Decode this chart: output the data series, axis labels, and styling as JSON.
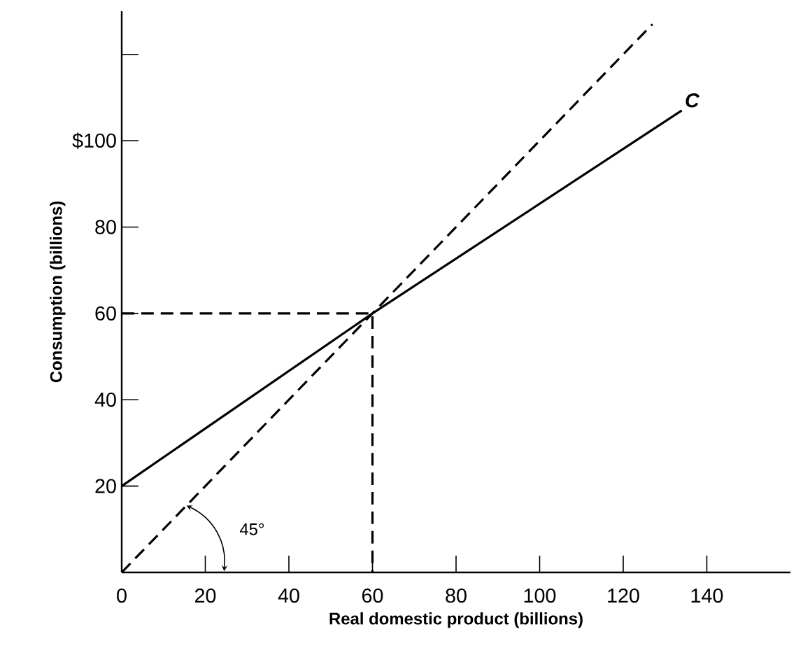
{
  "chart_data": {
    "type": "line",
    "xlabel": "Real domestic product (billions)",
    "ylabel": "Consumption (billions)",
    "xlim": [
      0,
      160
    ],
    "ylim": [
      0,
      130
    ],
    "xticks": [
      0,
      20,
      40,
      60,
      80,
      100,
      120,
      140
    ],
    "yticks": [
      20,
      40,
      60,
      80,
      {
        "value": 100,
        "label": "$100"
      },
      {
        "value": 120,
        "label": null
      }
    ],
    "series": [
      {
        "name": "C",
        "color": "#000000",
        "line_style": "solid",
        "x": [
          0,
          60,
          134
        ],
        "values": [
          20,
          60,
          107
        ]
      },
      {
        "color": "#000000",
        "line_style": "dashed",
        "x": [
          0,
          127
        ],
        "values": [
          0,
          127
        ]
      },
      {
        "color": "#000000",
        "line_style": "dashed",
        "x": [
          0,
          60,
          60
        ],
        "values": [
          60,
          60,
          0
        ]
      }
    ],
    "annotations": [
      "45°"
    ],
    "grid": false,
    "legend": false,
    "marker": "none"
  }
}
